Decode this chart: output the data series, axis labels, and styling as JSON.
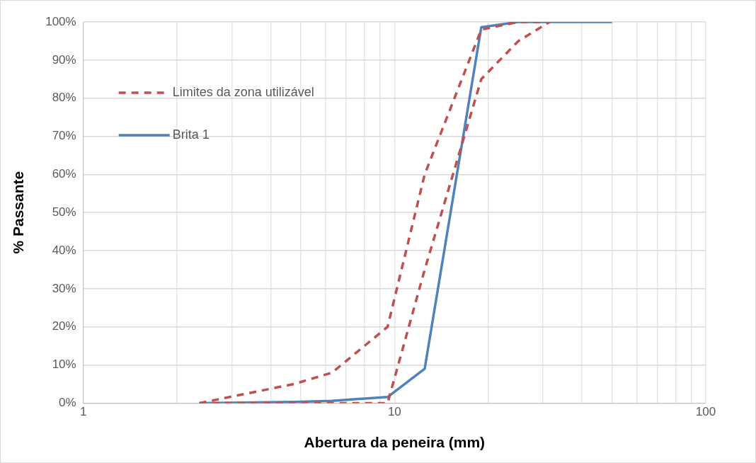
{
  "chart_data": {
    "type": "line",
    "xlabel": "Abertura da peneira (mm)",
    "ylabel": "% Passante",
    "log": "x",
    "xlim": [
      1,
      100
    ],
    "xticks": [
      1,
      10,
      100
    ],
    "ylim": [
      0,
      100
    ],
    "yticks": [
      {
        "value": 0,
        "label": "0%"
      },
      {
        "value": 10,
        "label": "10%"
      },
      {
        "value": 20,
        "label": "20%"
      },
      {
        "value": 30,
        "label": "30%"
      },
      {
        "value": 40,
        "label": "40%"
      },
      {
        "value": 50,
        "label": "50%"
      },
      {
        "value": 60,
        "label": "60%"
      },
      {
        "value": 70,
        "label": "70%"
      },
      {
        "value": 80,
        "label": "80%"
      },
      {
        "value": 90,
        "label": "90%"
      },
      {
        "value": 100,
        "label": "100%"
      }
    ],
    "grid": true,
    "legend": "top left",
    "marker": "none",
    "series": [
      {
        "name": "Limites da zona utilizável",
        "color": "#c0504d",
        "line_style": "dashed",
        "x": [
          2.36,
          4.75,
          6.3,
          9.5,
          12.5,
          19,
          25,
          31.5
        ],
        "values": [
          0,
          5,
          8,
          20,
          60,
          98,
          100,
          100
        ]
      },
      {
        "color": "#c0504d",
        "line_style": "dashed",
        "x": [
          2.36,
          4.75,
          6.3,
          9.5,
          12.5,
          19,
          25,
          31.5
        ],
        "values": [
          0,
          0,
          0,
          0,
          35,
          85,
          95,
          100
        ]
      },
      {
        "name": "Brita 1",
        "color": "#4f81bd",
        "line_style": "solid",
        "x": [
          2.36,
          4.75,
          6.3,
          9.5,
          12.5,
          19,
          25,
          31.5,
          37.5,
          50
        ],
        "values": [
          0,
          0.3,
          0.6,
          1.6,
          9,
          98.6,
          100,
          100,
          100,
          100
        ]
      }
    ]
  }
}
